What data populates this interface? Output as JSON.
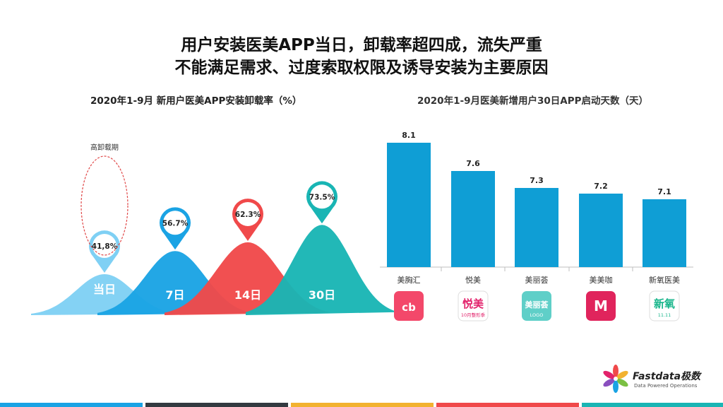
{
  "headline": {
    "line1": "用户安装医美APP当日，卸载率超四成，流失严重",
    "line2": "不能满足需求、过度索取权限及诱导安装为主要原因"
  },
  "chart_data": [
    {
      "type": "area",
      "title": "2020年1-9月 新用户医美APP安装卸载率（%）",
      "categories": [
        "当日",
        "7日",
        "14日",
        "30日"
      ],
      "values": [
        41.8,
        56.7,
        62.3,
        73.5
      ],
      "value_labels": [
        "41,8%",
        "56.7%",
        "62.3%",
        "73.5%"
      ],
      "colors": [
        "#7fd0f4",
        "#1aa3e4",
        "#f0494a",
        "#19b5b4"
      ],
      "annotation": "高卸载期"
    },
    {
      "type": "bar",
      "title": "2020年1-9月医美新增用户30日APP启动天数（天）",
      "categories": [
        "美胸汇",
        "悦美",
        "美丽荟",
        "美美咖",
        "新氧医美"
      ],
      "values": [
        8.1,
        7.6,
        7.3,
        7.2,
        7.1
      ],
      "value_labels": [
        "8.1",
        "7.6",
        "7.3",
        "7.2",
        "7.1"
      ],
      "color": "#0f9ed5",
      "grid": false
    }
  ],
  "app_icons": [
    {
      "icon": "meixionghui-icon",
      "text": "cb",
      "color": "#f3486a"
    },
    {
      "icon": "yuemei-icon",
      "text": "悦美",
      "sub": "10月整形季",
      "color": "#e2226b"
    },
    {
      "icon": "meilihui-icon",
      "text": "美丽荟",
      "sub": "LOGO",
      "color": "#5fcfc8"
    },
    {
      "icon": "meimeika-icon",
      "text": "M",
      "color": "#e0245c"
    },
    {
      "icon": "xinyang-icon",
      "text": "新氧",
      "sub": "11.11",
      "color": "#16b58a"
    }
  ],
  "footer_colors": [
    "#1aa3e4",
    "#333a40",
    "#f2b230",
    "#f0494a",
    "#19b5b4"
  ],
  "logo": {
    "name": "Fastdata极数",
    "tagline": "Data Powered Operations"
  }
}
